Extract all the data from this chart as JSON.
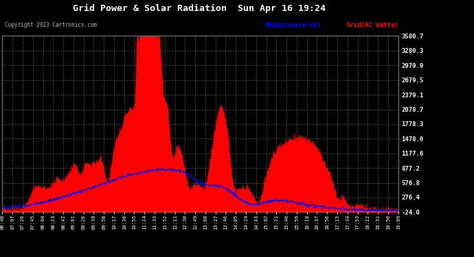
{
  "title": "Grid Power & Solar Radiation  Sun Apr 16 19:24",
  "copyright_text": "Copyright 2023 Cartronics.com",
  "legend_radiation": "Radiation(w/m2)",
  "legend_grid": "Grid(AC Watts)",
  "y_ticks": [
    3580.7,
    3280.3,
    2979.9,
    2679.5,
    2379.1,
    2078.7,
    1778.3,
    1478.0,
    1177.6,
    877.2,
    576.8,
    276.4,
    -24.0
  ],
  "y_min": -24.0,
  "y_max": 3580.7,
  "background_color": "#000000",
  "plot_bg_color": "#000000",
  "grid_color": "#666666",
  "radiation_color": "#0000ff",
  "grid_power_color": "#ff0000",
  "fill_color": "#ff0000",
  "title_color": "#ffffff",
  "tick_color": "#ffffff",
  "radiation_legend_color": "#0000ff",
  "grid_legend_color": "#ff0000",
  "x_tick_labels": [
    "06:48",
    "07:07",
    "07:26",
    "07:45",
    "08:04",
    "08:23",
    "08:42",
    "09:01",
    "09:20",
    "09:39",
    "09:58",
    "10:17",
    "10:36",
    "10:55",
    "11:14",
    "11:33",
    "11:52",
    "12:11",
    "12:30",
    "12:49",
    "13:08",
    "13:27",
    "13:46",
    "14:05",
    "14:24",
    "14:43",
    "15:02",
    "15:21",
    "15:40",
    "15:59",
    "16:18",
    "16:37",
    "16:56",
    "17:15",
    "17:34",
    "17:53",
    "18:12",
    "18:31",
    "18:50",
    "19:09"
  ]
}
